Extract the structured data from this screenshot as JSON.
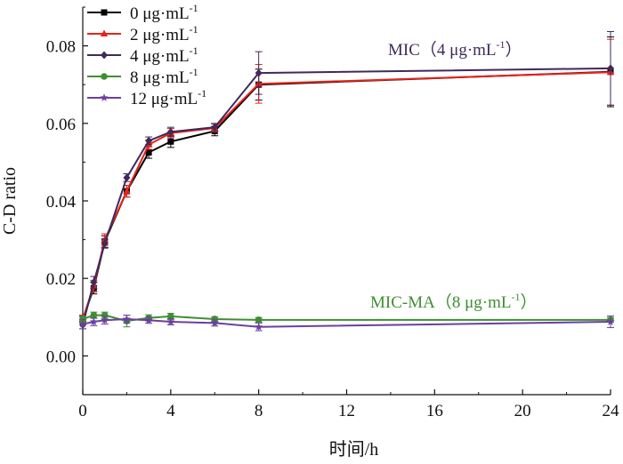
{
  "chart_data": {
    "type": "line",
    "xlabel": "时间/h",
    "ylabel": "C-D ratio",
    "xlim": [
      0,
      24
    ],
    "ylim": [
      -0.01,
      0.09
    ],
    "xticks": [
      0,
      4,
      8,
      12,
      16,
      20,
      24
    ],
    "xtick_labels": [
      "0",
      "4",
      "8",
      "12",
      "16",
      "20",
      "24"
    ],
    "yticks": [
      0.0,
      0.02,
      0.04,
      0.06,
      0.08
    ],
    "ytick_labels": [
      "0.00",
      "0.02",
      "0.04",
      "0.06",
      "0.08"
    ],
    "grid": false,
    "legend": {
      "position": "top-left"
    },
    "x": [
      0,
      0.5,
      1,
      2,
      3,
      4,
      6,
      8,
      24
    ],
    "series": [
      {
        "name_prefix": "0 μg·mL",
        "name_sup": "-1",
        "color": "#000000",
        "marker": "square",
        "values": [
          0.0095,
          0.0175,
          0.0295,
          0.0425,
          0.0525,
          0.0553,
          0.058,
          0.07,
          0.0733
        ],
        "errors": [
          0.001,
          0.0015,
          0.0015,
          0.0015,
          0.0015,
          0.0015,
          0.0012,
          0.004,
          0.009
        ]
      },
      {
        "name_prefix": "2 μg·mL",
        "name_sup": "-1",
        "color": "#e8231b",
        "marker": "triangle",
        "values": [
          0.0095,
          0.018,
          0.03,
          0.0425,
          0.0545,
          0.0575,
          0.0588,
          0.0702,
          0.0732
        ],
        "errors": [
          0.001,
          0.0015,
          0.0015,
          0.0015,
          0.0012,
          0.0012,
          0.001,
          0.005,
          0.0085
        ]
      },
      {
        "name_prefix": "4 μg·mL",
        "name_sup": "-1",
        "color": "#3f2a5b",
        "marker": "diamond",
        "values": [
          0.008,
          0.019,
          0.029,
          0.046,
          0.0555,
          0.0578,
          0.059,
          0.073,
          0.0742
        ],
        "errors": [
          0.001,
          0.0015,
          0.0012,
          0.001,
          0.001,
          0.0012,
          0.001,
          0.0055,
          0.0095
        ]
      },
      {
        "name_prefix": "8 μg·mL",
        "name_sup": "-1",
        "color": "#3e8f30",
        "marker": "circle",
        "values": [
          0.0095,
          0.0105,
          0.0105,
          0.009,
          0.0098,
          0.0102,
          0.0095,
          0.0093,
          0.0093
        ],
        "errors": [
          0.0008,
          0.0008,
          0.0008,
          0.0015,
          0.0008,
          0.0008,
          0.0006,
          0.0006,
          0.0006
        ]
      },
      {
        "name_prefix": "12 μg·mL",
        "name_sup": "-1",
        "color": "#6b3fa0",
        "marker": "star",
        "values": [
          0.0082,
          0.0088,
          0.0092,
          0.0095,
          0.0092,
          0.0088,
          0.0085,
          0.0075,
          0.0088
        ],
        "errors": [
          0.0012,
          0.001,
          0.001,
          0.001,
          0.0008,
          0.0008,
          0.0008,
          0.001,
          0.0015
        ]
      }
    ],
    "annotations": [
      {
        "prefix": "MIC（4 μg·mL",
        "sup": "-1",
        "suffix": "）",
        "color": "#3f2a5b"
      },
      {
        "prefix": "MIC-MA（8 μg·mL",
        "sup": "-1",
        "suffix": "）",
        "color": "#3e8f30"
      }
    ]
  }
}
